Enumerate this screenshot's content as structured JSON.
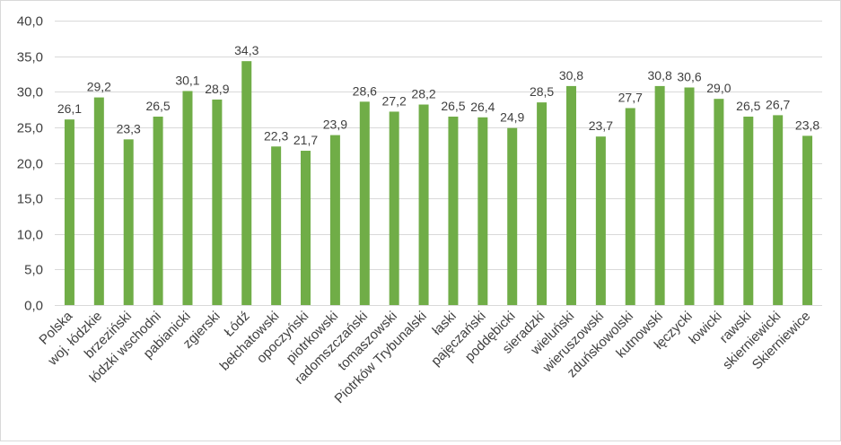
{
  "chart_data": {
    "type": "bar",
    "title": "",
    "xlabel": "",
    "ylabel": "",
    "ylim": [
      0,
      40
    ],
    "ytick_step": 5,
    "ytick_labels": [
      "0,0",
      "5,0",
      "10,0",
      "15,0",
      "20,0",
      "25,0",
      "30,0",
      "35,0",
      "40,0"
    ],
    "grid": true,
    "legend": "none",
    "bar_color": "#70ad47",
    "grid_color": "#d9d9d9",
    "categories": [
      "Polska",
      "woj. łódzkie",
      "brzeziński",
      "łódzki wschodni",
      "pabianicki",
      "zgierski",
      "Łódź",
      "bełchatowski",
      "opoczyński",
      "piotrkowski",
      "radomszczański",
      "tomaszowski",
      "Piotrków Trybunalski",
      "łaski",
      "pajęczański",
      "poddębicki",
      "sieradzki",
      "wieluński",
      "wieruszowski",
      "zduńskowolski",
      "kutnowski",
      "łęczycki",
      "łowicki",
      "rawski",
      "skierniewicki",
      "Skierniewice"
    ],
    "values": [
      26.1,
      29.2,
      23.3,
      26.5,
      30.1,
      28.9,
      34.3,
      22.3,
      21.7,
      23.9,
      28.6,
      27.2,
      28.2,
      26.5,
      26.4,
      24.9,
      28.5,
      30.8,
      23.7,
      27.7,
      30.8,
      30.6,
      29.0,
      26.5,
      26.7,
      23.8
    ],
    "value_labels": [
      "26,1",
      "29,2",
      "23,3",
      "26,5",
      "30,1",
      "28,9",
      "34,3",
      "22,3",
      "21,7",
      "23,9",
      "28,6",
      "27,2",
      "28,2",
      "26,5",
      "26,4",
      "24,9",
      "28,5",
      "30,8",
      "23,7",
      "27,7",
      "30,8",
      "30,6",
      "29,0",
      "26,5",
      "26,7",
      "23,8"
    ]
  }
}
